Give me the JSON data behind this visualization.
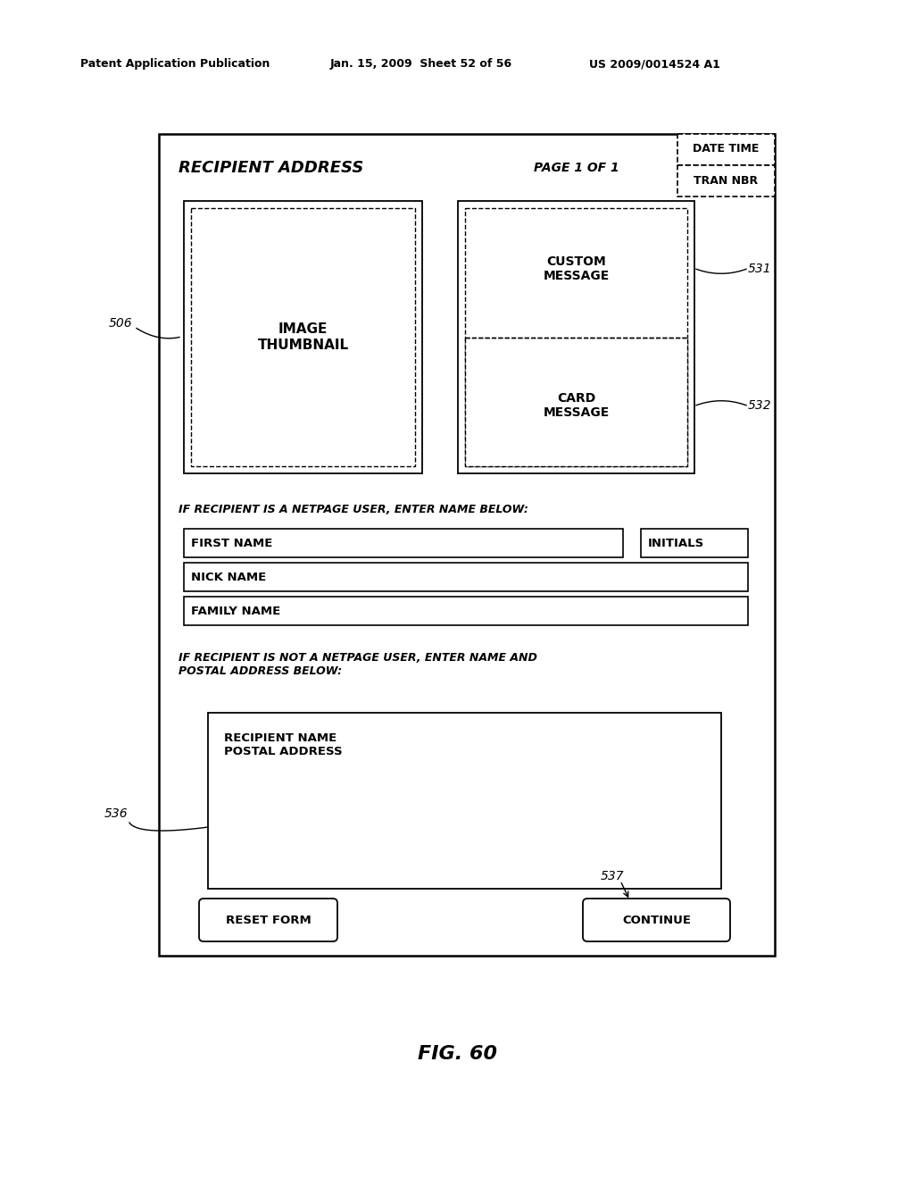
{
  "bg_color": "#ffffff",
  "header_left": "Patent Application Publication",
  "header_mid": "Jan. 15, 2009  Sheet 52 of 56",
  "header_right": "US 2009/0014524 A1",
  "figure_label": "FIG. 60",
  "title_text": "RECIPIENT ADDRESS",
  "page_text": "PAGE 1 OF 1",
  "date_time_text": "DATE TIME",
  "tran_nbr_text": "TRAN NBR",
  "image_thumbnail_text": "IMAGE\nTHUMBNAIL",
  "custom_message_text": "CUSTOM\nMESSAGE",
  "card_message_text": "CARD\nMESSAGE",
  "label_506": "506",
  "label_531": "531",
  "label_532": "532",
  "label_536": "536",
  "label_537": "537",
  "netpage_text1": "IF RECIPIENT IS A NETPAGE USER, ENTER NAME BELOW:",
  "first_name_text": "FIRST NAME",
  "initials_text": "INITIALS",
  "nick_name_text": "NICK NAME",
  "family_name_text": "FAMILY NAME",
  "netpage_text2": "IF RECIPIENT IS NOT A NETPAGE USER, ENTER NAME AND\nPOSTAL ADDRESS BELOW:",
  "recipient_name_text": "RECIPIENT NAME\nPOSTAL ADDRESS",
  "reset_form_text": "RESET FORM",
  "continue_text": "CONTINUE"
}
